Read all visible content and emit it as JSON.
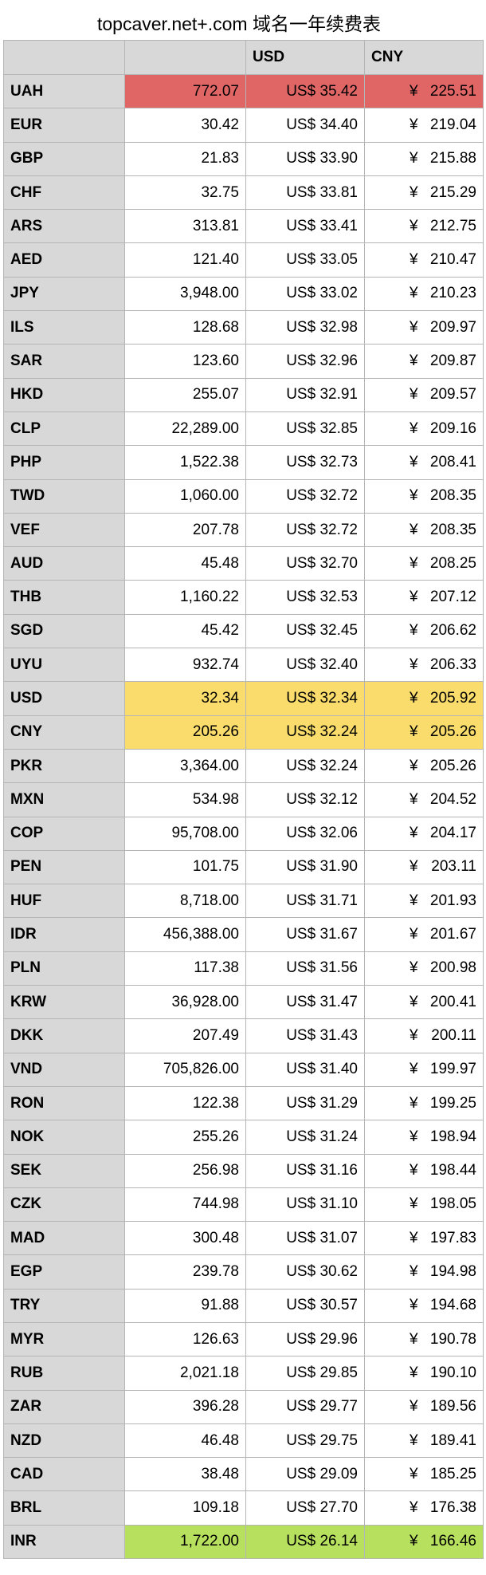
{
  "title": "topcaver.net+.com 域名一年续费表",
  "columns": [
    "",
    "",
    "USD",
    "CNY"
  ],
  "highlight_colors": {
    "red": "#e06666",
    "yellow": "#f9dc6b",
    "green": "#b6e05e"
  },
  "rows": [
    {
      "code": "UAH",
      "local": "772.07",
      "usd": "US$ 35.42",
      "cny": "225.51",
      "highlight": "red"
    },
    {
      "code": "EUR",
      "local": "30.42",
      "usd": "US$ 34.40",
      "cny": "219.04"
    },
    {
      "code": "GBP",
      "local": "21.83",
      "usd": "US$ 33.90",
      "cny": "215.88"
    },
    {
      "code": "CHF",
      "local": "32.75",
      "usd": "US$ 33.81",
      "cny": "215.29"
    },
    {
      "code": "ARS",
      "local": "313.81",
      "usd": "US$ 33.41",
      "cny": "212.75"
    },
    {
      "code": "AED",
      "local": "121.40",
      "usd": "US$ 33.05",
      "cny": "210.47"
    },
    {
      "code": "JPY",
      "local": "3,948.00",
      "usd": "US$ 33.02",
      "cny": "210.23"
    },
    {
      "code": "ILS",
      "local": "128.68",
      "usd": "US$ 32.98",
      "cny": "209.97"
    },
    {
      "code": "SAR",
      "local": "123.60",
      "usd": "US$ 32.96",
      "cny": "209.87"
    },
    {
      "code": "HKD",
      "local": "255.07",
      "usd": "US$ 32.91",
      "cny": "209.57"
    },
    {
      "code": "CLP",
      "local": "22,289.00",
      "usd": "US$ 32.85",
      "cny": "209.16"
    },
    {
      "code": "PHP",
      "local": "1,522.38",
      "usd": "US$ 32.73",
      "cny": "208.41"
    },
    {
      "code": "TWD",
      "local": "1,060.00",
      "usd": "US$ 32.72",
      "cny": "208.35"
    },
    {
      "code": "VEF",
      "local": "207.78",
      "usd": "US$ 32.72",
      "cny": "208.35"
    },
    {
      "code": "AUD",
      "local": "45.48",
      "usd": "US$ 32.70",
      "cny": "208.25"
    },
    {
      "code": "THB",
      "local": "1,160.22",
      "usd": "US$ 32.53",
      "cny": "207.12"
    },
    {
      "code": "SGD",
      "local": "45.42",
      "usd": "US$ 32.45",
      "cny": "206.62"
    },
    {
      "code": "UYU",
      "local": "932.74",
      "usd": "US$ 32.40",
      "cny": "206.33"
    },
    {
      "code": "USD",
      "local": "32.34",
      "usd": "US$ 32.34",
      "cny": "205.92",
      "highlight": "yellow"
    },
    {
      "code": "CNY",
      "local": "205.26",
      "usd": "US$ 32.24",
      "cny": "205.26",
      "highlight": "yellow"
    },
    {
      "code": "PKR",
      "local": "3,364.00",
      "usd": "US$ 32.24",
      "cny": "205.26"
    },
    {
      "code": "MXN",
      "local": "534.98",
      "usd": "US$ 32.12",
      "cny": "204.52"
    },
    {
      "code": "COP",
      "local": "95,708.00",
      "usd": "US$ 32.06",
      "cny": "204.17"
    },
    {
      "code": "PEN",
      "local": "101.75",
      "usd": "US$ 31.90",
      "cny": "203.11"
    },
    {
      "code": "HUF",
      "local": "8,718.00",
      "usd": "US$ 31.71",
      "cny": "201.93"
    },
    {
      "code": "IDR",
      "local": "456,388.00",
      "usd": "US$ 31.67",
      "cny": "201.67"
    },
    {
      "code": "PLN",
      "local": "117.38",
      "usd": "US$ 31.56",
      "cny": "200.98"
    },
    {
      "code": "KRW",
      "local": "36,928.00",
      "usd": "US$ 31.47",
      "cny": "200.41"
    },
    {
      "code": "DKK",
      "local": "207.49",
      "usd": "US$ 31.43",
      "cny": "200.11"
    },
    {
      "code": "VND",
      "local": "705,826.00",
      "usd": "US$ 31.40",
      "cny": "199.97"
    },
    {
      "code": "RON",
      "local": "122.38",
      "usd": "US$ 31.29",
      "cny": "199.25"
    },
    {
      "code": "NOK",
      "local": "255.26",
      "usd": "US$ 31.24",
      "cny": "198.94"
    },
    {
      "code": "SEK",
      "local": "256.98",
      "usd": "US$ 31.16",
      "cny": "198.44"
    },
    {
      "code": "CZK",
      "local": "744.98",
      "usd": "US$ 31.10",
      "cny": "198.05"
    },
    {
      "code": "MAD",
      "local": "300.48",
      "usd": "US$ 31.07",
      "cny": "197.83"
    },
    {
      "code": "EGP",
      "local": "239.78",
      "usd": "US$ 30.62",
      "cny": "194.98"
    },
    {
      "code": "TRY",
      "local": "91.88",
      "usd": "US$ 30.57",
      "cny": "194.68"
    },
    {
      "code": "MYR",
      "local": "126.63",
      "usd": "US$ 29.96",
      "cny": "190.78"
    },
    {
      "code": "RUB",
      "local": "2,021.18",
      "usd": "US$ 29.85",
      "cny": "190.10"
    },
    {
      "code": "ZAR",
      "local": "396.28",
      "usd": "US$ 29.77",
      "cny": "189.56"
    },
    {
      "code": "NZD",
      "local": "46.48",
      "usd": "US$ 29.75",
      "cny": "189.41"
    },
    {
      "code": "CAD",
      "local": "38.48",
      "usd": "US$ 29.09",
      "cny": "185.25"
    },
    {
      "code": "BRL",
      "local": "109.18",
      "usd": "US$ 27.70",
      "cny": "176.38"
    },
    {
      "code": "INR",
      "local": "1,722.00",
      "usd": "US$ 26.14",
      "cny": "166.46",
      "highlight": "green"
    }
  ],
  "yen_symbol": "¥"
}
